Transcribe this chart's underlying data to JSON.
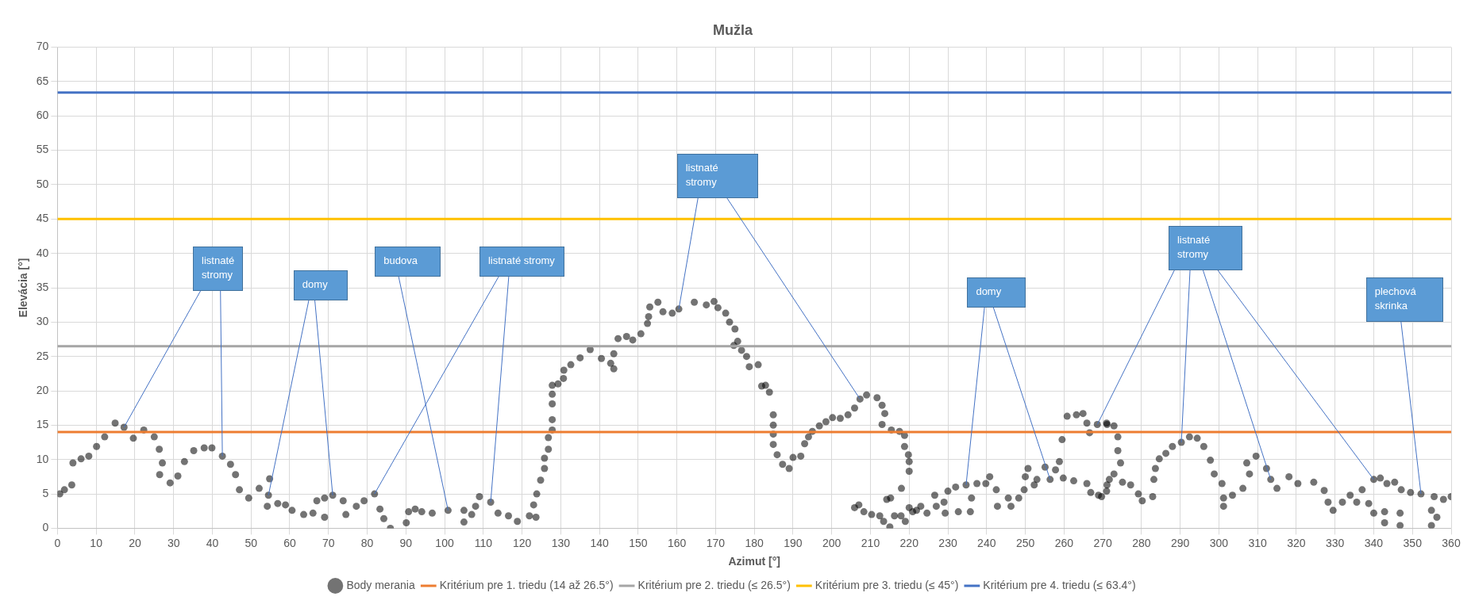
{
  "chart_data": {
    "type": "scatter",
    "title": "Mužla",
    "xlabel": "Azimut [°]",
    "ylabel": "Elevácia [°]",
    "xlim": [
      0,
      360
    ],
    "xticks": [
      0,
      10,
      20,
      30,
      40,
      50,
      60,
      70,
      80,
      90,
      100,
      110,
      120,
      130,
      140,
      150,
      160,
      170,
      180,
      190,
      200,
      210,
      220,
      230,
      240,
      250,
      260,
      270,
      280,
      290,
      300,
      310,
      320,
      330,
      340,
      350,
      360
    ],
    "ylim": [
      0,
      70
    ],
    "yticks": [
      0,
      5,
      10,
      15,
      20,
      25,
      30,
      35,
      40,
      45,
      50,
      55,
      60,
      65,
      70
    ],
    "grid": true,
    "legend": "bottom",
    "marker": "circle",
    "series": [
      {
        "name": "Body merania",
        "color": "#000000",
        "x": [
          0.6,
          1.8,
          3.7,
          4,
          6.1,
          8.1,
          10.1,
          12.2,
          14.9,
          17.2,
          19.6,
          22.3,
          25,
          26.3,
          27.1,
          26.4,
          29.1,
          31.1,
          32.8,
          35.2,
          37.9,
          39.9,
          42.6,
          44.7,
          46,
          47,
          49.4,
          52.1,
          54.8,
          54.5,
          54.2,
          56.9,
          58.9,
          60.6,
          63.6,
          66,
          67,
          69,
          69,
          71.1,
          73.8,
          74.5,
          77.2,
          79.2,
          81.9,
          83.3,
          84.3,
          86,
          90.1,
          90.7,
          92.4,
          94.1,
          96.8,
          100.9,
          105,
          105,
          107,
          108,
          109,
          111.9,
          113.8,
          116.5,
          118.8,
          121.9,
          123.6,
          123,
          123.8,
          124.8,
          125.8,
          125.8,
          126.8,
          126.8,
          127.8,
          127.8,
          127.8,
          127.8,
          127.8,
          129.3,
          130.7,
          130.8,
          132.6,
          135,
          137.6,
          140.5,
          142.9,
          143.7,
          143.7,
          144.8,
          147,
          148.6,
          150.7,
          152.4,
          152.7,
          153,
          155.1,
          156.4,
          158.8,
          160.5,
          164.5,
          167.6,
          169.6,
          170.6,
          172.6,
          173.6,
          175,
          175.7,
          174.7,
          176.7,
          178,
          178.7,
          181,
          181.9,
          182.9,
          183.9,
          184.9,
          184.9,
          184.9,
          184.9,
          185.9,
          187.3,
          189,
          190,
          192,
          193,
          194,
          195,
          196.8,
          198.5,
          200.2,
          202.2,
          204.2,
          205.9,
          207.3,
          209,
          211.7,
          213,
          213.7,
          213,
          215.4,
          217.5,
          218.8,
          218.8,
          219.8,
          220,
          220,
          218,
          205.9,
          207,
          208.3,
          210.3,
          212.4,
          213.4,
          215,
          214.2,
          215.2,
          216.2,
          217.9,
          219,
          220,
          220.9,
          221.9,
          223,
          224.6,
          226.6,
          227,
          229,
          229.3,
          230,
          232,
          232.7,
          234.7,
          235.8,
          236.1,
          237.5,
          239.8,
          240.8,
          242.5,
          242.8,
          245.6,
          246.3,
          248.3,
          249.7,
          250,
          250.7,
          252.3,
          253,
          255.1,
          256.4,
          257.8,
          258.8,
          259.5,
          259.8,
          260.8,
          262.5,
          263.2,
          264.9,
          265.9,
          265.9,
          266.6,
          266.9,
          268.6,
          268.9,
          269.7,
          271,
          271,
          271.1,
          271.1,
          271.7,
          272.9,
          272.9,
          273.9,
          273.9,
          274.6,
          275.1,
          277.2,
          279.2,
          280.2,
          282.9,
          283.2,
          283.6,
          284.6,
          286.3,
          288,
          290.3,
          292.4,
          294.4,
          296.1,
          297.8,
          298.8,
          300.8,
          301.2,
          301.2,
          303.5,
          306.2,
          307.9,
          307.2,
          309.6,
          312.3,
          313.4,
          315,
          318.1,
          320.4,
          324.5,
          327.2,
          328.2,
          329.5,
          331.9,
          333.9,
          335.6,
          337,
          338.7,
          340,
          340,
          341.7,
          342.8,
          342.8,
          343.4,
          345.4,
          346.8,
          346.8,
          347.1,
          349.5,
          352.2,
          354.9,
          354.9,
          355.6,
          356.3,
          358,
          360
        ],
        "values": [
          5,
          5.6,
          6.3,
          9.5,
          10.1,
          10.5,
          11.9,
          13.3,
          15.3,
          14.7,
          13.1,
          14.3,
          13.3,
          11.5,
          9.5,
          7.8,
          6.6,
          7.6,
          9.7,
          11.3,
          11.7,
          11.7,
          10.5,
          9.3,
          7.8,
          5.6,
          4.4,
          5.8,
          7.2,
          4.8,
          3.2,
          3.6,
          3.4,
          2.6,
          2,
          2.2,
          4,
          4.4,
          1.6,
          4.8,
          4,
          2,
          3.2,
          4,
          5,
          2.8,
          1.4,
          0,
          0.8,
          2.4,
          2.8,
          2.4,
          2.2,
          2.6,
          2.6,
          0.9,
          2,
          3.2,
          4.6,
          3.8,
          2.2,
          1.8,
          1,
          1.8,
          1.6,
          3.4,
          5,
          7,
          8.7,
          10.2,
          11.5,
          13.2,
          14.3,
          15.8,
          18.1,
          19.5,
          20.8,
          21,
          21.8,
          23,
          23.8,
          24.8,
          26,
          24.7,
          24,
          23.2,
          25.4,
          27.6,
          27.9,
          27.4,
          28.3,
          29.8,
          30.8,
          32.2,
          32.9,
          31.5,
          31.3,
          31.9,
          32.9,
          32.5,
          33,
          32.1,
          31.3,
          30,
          29,
          27.2,
          26.6,
          25.9,
          25,
          23.5,
          23.8,
          20.7,
          20.8,
          19.8,
          16.5,
          15,
          13.7,
          12.2,
          10.7,
          9.3,
          8.7,
          10.3,
          10.5,
          12.3,
          13.3,
          14.1,
          14.9,
          15.5,
          16.1,
          16,
          16.5,
          17.5,
          18.8,
          19.4,
          19,
          17.9,
          16.7,
          15.1,
          14.3,
          14.1,
          13.5,
          11.9,
          10.7,
          9.7,
          8.3,
          5.8,
          3,
          3.4,
          2.4,
          2,
          1.8,
          1,
          0.2,
          4.2,
          4.4,
          1.8,
          1.8,
          1,
          3,
          2.4,
          2.6,
          3.2,
          2.2,
          4.8,
          3.2,
          3.8,
          2.2,
          5.4,
          6,
          2.4,
          6.3,
          2.4,
          4.4,
          6.5,
          6.5,
          7.5,
          5.6,
          3.2,
          4.4,
          3.2,
          4.4,
          5.6,
          7.5,
          8.7,
          6.3,
          7.1,
          8.9,
          7.1,
          8.5,
          9.7,
          12.9,
          7.3,
          16.3,
          6.9,
          16.5,
          16.7,
          15.3,
          6.5,
          13.9,
          5.2,
          15.1,
          4.8,
          4.6,
          15.3,
          5.4,
          15.1,
          6.3,
          7.1,
          14.9,
          7.9,
          13.3,
          11.3,
          9.5,
          6.7,
          6.3,
          5,
          4,
          4.6,
          7.1,
          8.7,
          10.1,
          10.9,
          11.9,
          12.5,
          13.3,
          13.1,
          11.9,
          9.9,
          7.9,
          6.5,
          4.4,
          3.2,
          4.8,
          5.8,
          7.9,
          9.5,
          10.5,
          8.7,
          7.1,
          5.8,
          7.5,
          6.5,
          6.7,
          5.5,
          3.8,
          2.6,
          3.8,
          4.8,
          3.8,
          5.6,
          3.6,
          7.1,
          2.2,
          7.3,
          2.4,
          0.8,
          6.5,
          6.7,
          2.2,
          0.4,
          5.6,
          5.2,
          5,
          2.6,
          0.4,
          4.6,
          1.6,
          4.2,
          4.6
        ]
      }
    ],
    "ref_lines": [
      {
        "axis": "y",
        "value": 14,
        "label": "Kritérium pre 1. triedu (14 až 26.5°)",
        "color": "#ed7d31"
      },
      {
        "axis": "y",
        "value": 26.5,
        "label": "Kritérium pre 2. triedu (≤ 26.5°)",
        "color": "#a5a5a5"
      },
      {
        "axis": "y",
        "value": 45,
        "label": "Kritérium pre 3. triedu (≤ 45°)",
        "color": "#ffc000"
      },
      {
        "axis": "y",
        "value": 63.4,
        "label": "Kritérium pre 4. triedu (≤ 63.4°)",
        "color": "#4472c4"
      }
    ],
    "annotations": [
      {
        "text": "listnaté stromy",
        "x": 17.2,
        "y": 14.7
      },
      {
        "text": "domy",
        "x": 71.1,
        "y": 4.8
      },
      {
        "text": "budova",
        "x": 100.9,
        "y": 2.6
      },
      {
        "text": "listnaté stromy",
        "x": 111.9,
        "y": 3.8
      },
      {
        "text": "listnaté stromy",
        "x": 207.3,
        "y": 18.8
      },
      {
        "text": "domy",
        "x": 256.4,
        "y": 7.1
      },
      {
        "text": "listnaté stromy",
        "x": 290.3,
        "y": 12.5
      },
      {
        "text": "plechová skrinka",
        "x": 352.2,
        "y": 5
      }
    ]
  }
}
